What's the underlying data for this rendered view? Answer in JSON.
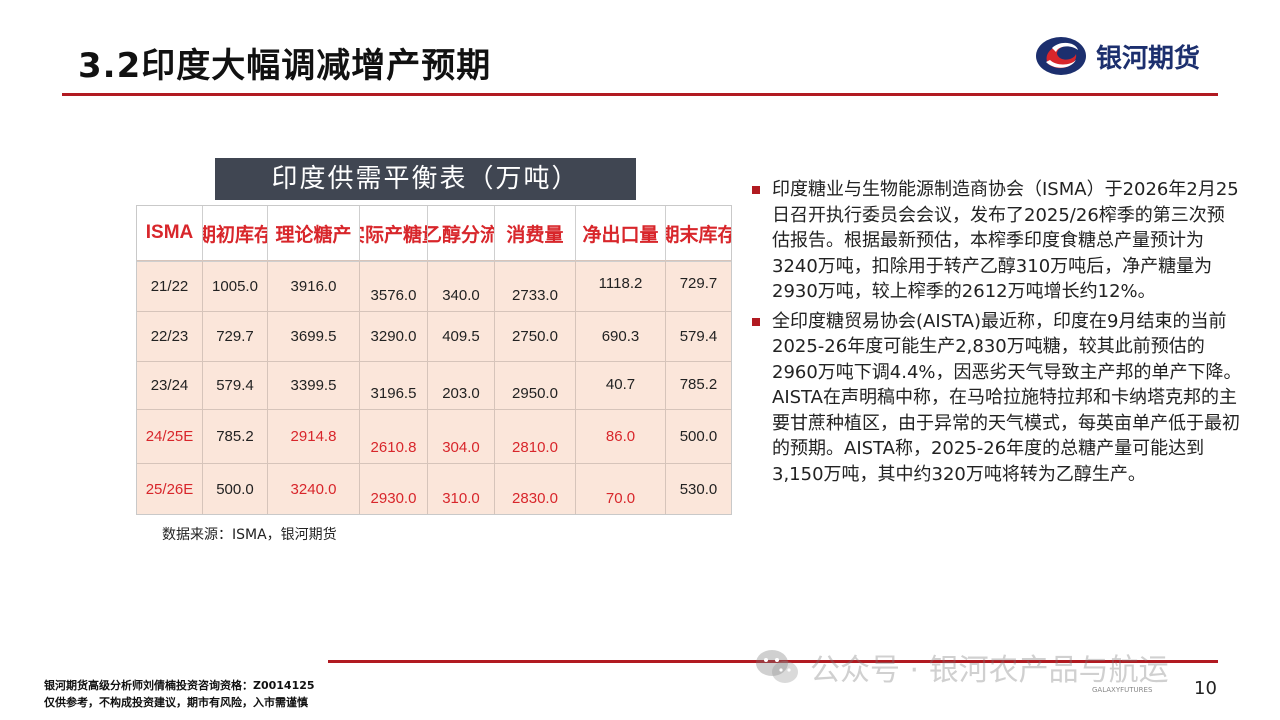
{
  "slide": {
    "title": "3.2印度大幅调减增产预期",
    "logo_text": "银河期货",
    "page_number": "10"
  },
  "table": {
    "title": "印度供需平衡表（万吨）",
    "headers": [
      "ISMA",
      "期初库存",
      "理论糖产",
      "实际产糖量",
      "乙醇分流",
      "消费量",
      "净出口量",
      "期末库存"
    ],
    "rows": [
      {
        "cells": [
          "21/22",
          "1005.0",
          "3916.0",
          "3576.0",
          "340.0",
          "2733.0",
          "1118.2",
          "729.7"
        ]
      },
      {
        "cells": [
          "22/23",
          "729.7",
          "3699.5",
          "3290.0",
          "409.5",
          "2750.0",
          "690.3",
          "579.4"
        ]
      },
      {
        "cells": [
          "23/24",
          "579.4",
          "3399.5",
          "3196.5",
          "203.0",
          "2950.0",
          "40.7",
          "785.2"
        ]
      },
      {
        "cells": [
          "24/25E",
          "785.2",
          "2914.8",
          "2610.8",
          "304.0",
          "2810.0",
          "86.0",
          "500.0"
        ]
      },
      {
        "cells": [
          "25/26E",
          "500.0",
          "3240.0",
          "2930.0",
          "310.0",
          "2830.0",
          "70.0",
          "530.0"
        ]
      }
    ],
    "source": "数据来源：ISMA，银河期货"
  },
  "bullets": [
    "印度糖业与生物能源制造商协会（ISMA）于2026年2月25日召开执行委员会会议，发布了2025/26榨季的第三次预估报告。根据最新预估，本榨季印度食糖总产量预计为3240万吨，扣除用于转产乙醇310万吨后，净产糖量为2930万吨，较上榨季的2612万吨增长约12%。",
    "全印度糖贸易协会(AISTA)最近称，印度在9月结束的当前2025-26年度可能生产2,830万吨糖，较其此前预估的2960万吨下调4.4%，因恶劣天气导致主产邦的单产下降。AISTA在声明稿中称，在马哈拉施特拉邦和卡纳塔克邦的主要甘蔗种植区，由于异常的天气模式，每英亩单产低于最初的预期。AISTA称，2025-26年度的总糖产量可能达到3,150万吨，其中约320万吨将转为乙醇生产。"
  ],
  "footer": {
    "disclaimer_line1": "银河期货高级分析师刘倩楠投资咨询资格：Z0014125",
    "disclaimer_line2": "仅供参考，不构成投资建议，期市有风险，入市需谨慎",
    "watermark": "公众号 · 银河农产品与航运",
    "brand_small": "GALAXYFUTURES"
  },
  "colors": {
    "accent_red": "#b11a21",
    "header_red": "#d8262b",
    "table_bg": "#fbe6da",
    "title_box": "#404652",
    "logo_blue": "#1c2f6e"
  }
}
